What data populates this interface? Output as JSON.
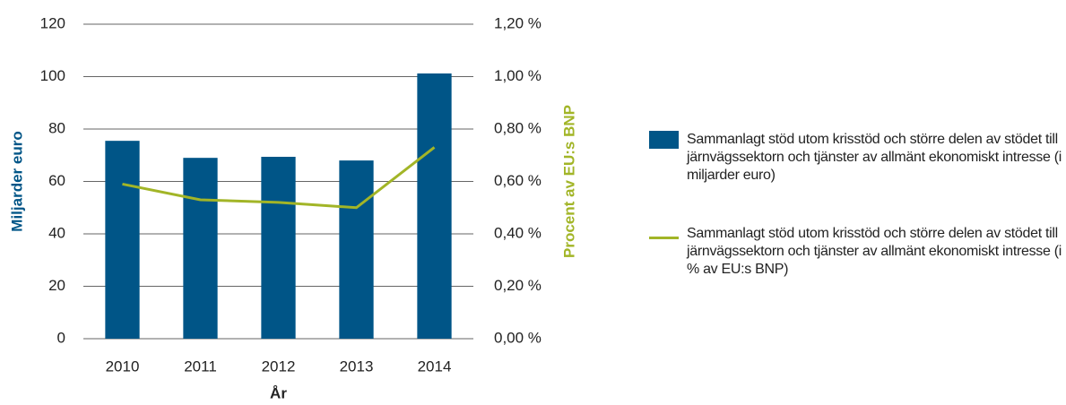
{
  "chart_data": {
    "type": "bar_line",
    "categories": [
      "2010",
      "2011",
      "2012",
      "2013",
      "2014"
    ],
    "xlabel": "År",
    "ylabel": "Miljarder euro",
    "y2label": "Procent av EU:s BNP",
    "series": [
      {
        "name": "Sammanlagt stöd utom krisstöd och större delen av stödet till järnvägssektorn och tjänster av allmänt ekonomiskt intresse (i miljarder euro)",
        "type": "bar",
        "color": "#005587",
        "values": [
          75.5,
          69,
          69.4,
          68,
          101.2
        ]
      },
      {
        "name": "Sammanlagt stöd utom krisstöd och större delen av stödet till järnvägssektorn och tjänster av allmänt ekonomiskt intresse (i % av EU:s BNP)",
        "type": "line",
        "axis": "y2",
        "color": "#a2b527",
        "values": [
          0.59,
          0.53,
          0.52,
          0.5,
          0.73
        ]
      }
    ],
    "ylim": [
      0,
      120
    ],
    "yticks": [
      0,
      20,
      40,
      60,
      80,
      100,
      120
    ],
    "y2lim": [
      0,
      1.2
    ],
    "y2ticks": [
      {
        "value": 0,
        "label": "0,00 %"
      },
      {
        "value": 0.2,
        "label": "0,20 %"
      },
      {
        "value": 0.4,
        "label": "0,40 %"
      },
      {
        "value": 0.6,
        "label": "0,60 %"
      },
      {
        "value": 0.8,
        "label": "0,80 %"
      },
      {
        "value": 1,
        "label": "1,00 %"
      },
      {
        "value": 1.2,
        "label": "1,20 %"
      }
    ],
    "grid": true
  }
}
